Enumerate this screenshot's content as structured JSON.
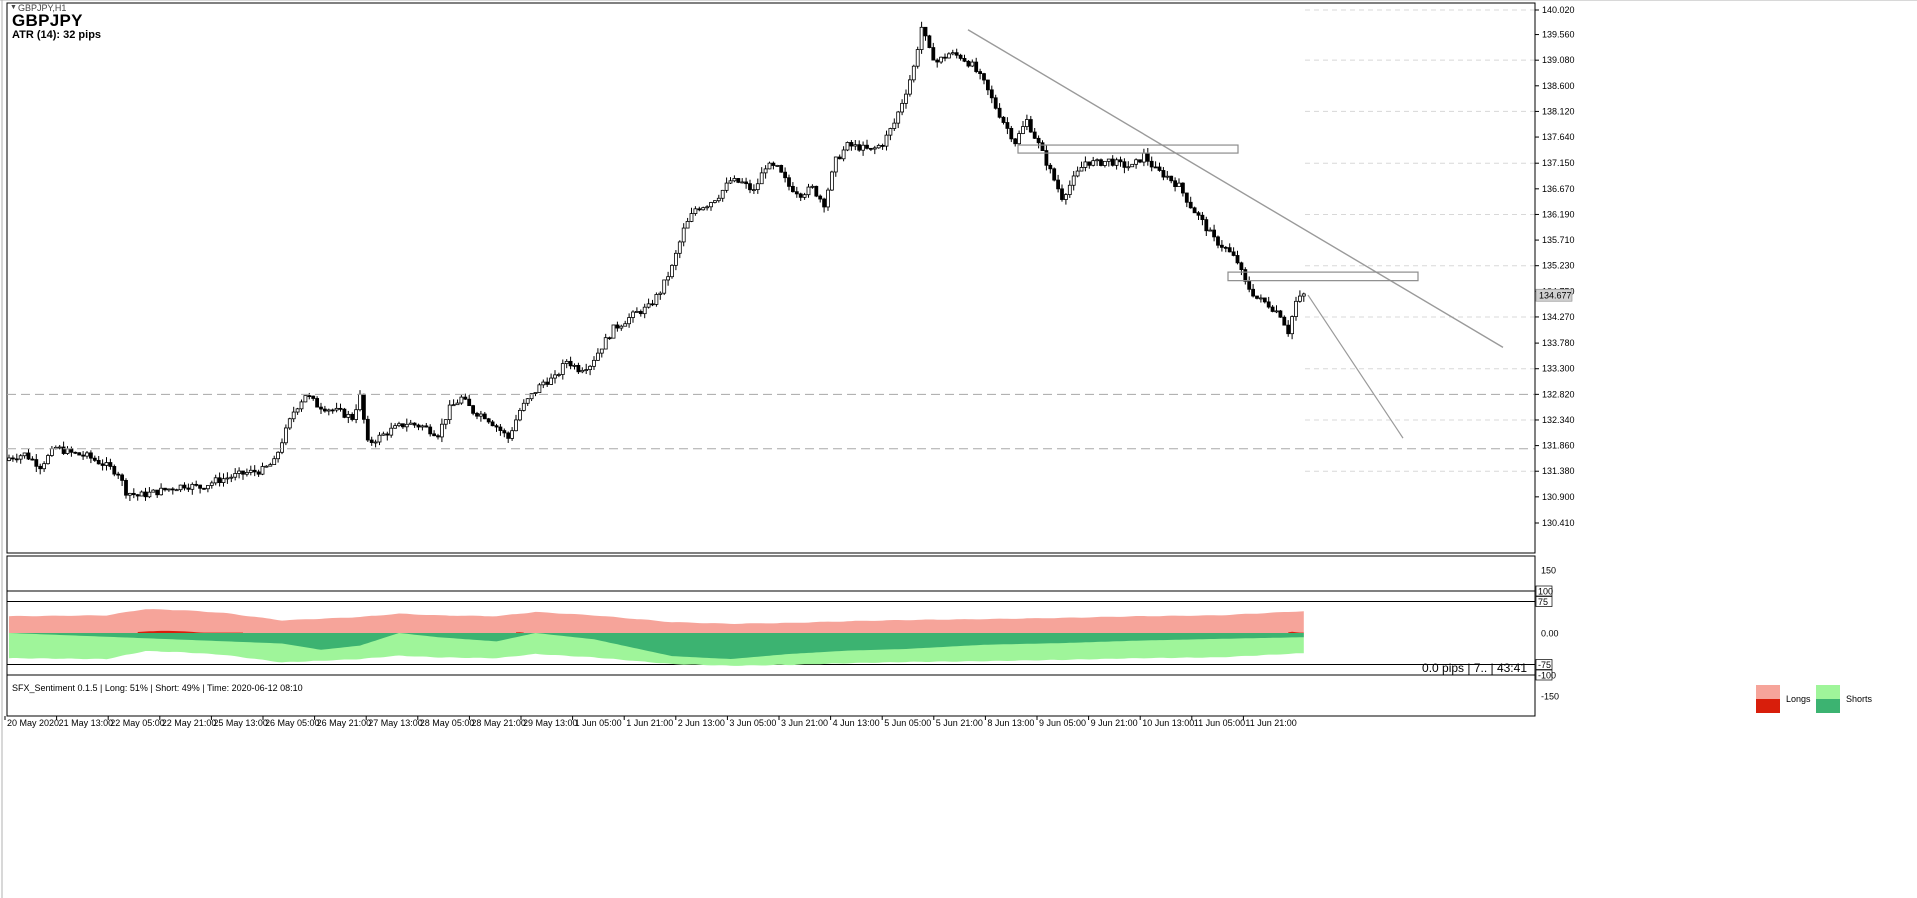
{
  "chart_window": {
    "symbol_timeframe": "GBPJPY,H1",
    "symbol": "GBPJPY",
    "atr_label": "ATR (14): 32 pips",
    "status_info": "0.0 pips | 7.. | 43:41",
    "current_price": "134.677"
  },
  "indicator": {
    "title": "SFX_Sentiment 0.1.5 | Long: 51% | Short: 49% | Time: 2020-06-12 08:10",
    "legend": {
      "longs": "Longs",
      "shorts": "Shorts"
    },
    "levels": [
      "100",
      "75",
      "0.00",
      "-75",
      "-100",
      "150",
      "-150"
    ]
  },
  "colors": {
    "background": "#ffffff",
    "candle": "#000000",
    "trendline": "#9a9a9a",
    "zone_border": "#8c8c8c",
    "longs_light": "#f6a49a",
    "longs_dark": "#d81e0b",
    "shorts_light": "#9ff59a",
    "shorts_dark": "#3cb371"
  },
  "chart_data": [
    {
      "type": "candlestick",
      "title": "GBPJPY,H1",
      "ylim": [
        130.41,
        140.02
      ],
      "y_ticks": [
        "140.020",
        "139.560",
        "139.080",
        "138.600",
        "138.120",
        "137.640",
        "137.150",
        "136.670",
        "136.190",
        "135.710",
        "135.230",
        "134.750",
        "134.270",
        "133.780",
        "133.300",
        "132.820",
        "132.340",
        "131.860",
        "131.380",
        "130.900",
        "130.410"
      ],
      "x_ticks": [
        "20 May 2020",
        "21 May 13:00",
        "22 May 05:00",
        "22 May 21:00",
        "25 May 13:00",
        "26 May 05:00",
        "26 May 21:00",
        "27 May 13:00",
        "28 May 05:00",
        "28 May 21:00",
        "29 May 13:00",
        "1 Jun 05:00",
        "1 Jun 21:00",
        "2 Jun 13:00",
        "3 Jun 05:00",
        "3 Jun 21:00",
        "4 Jun 13:00",
        "5 Jun 05:00",
        "5 Jun 21:00",
        "8 Jun 13:00",
        "9 Jun 05:00",
        "9 Jun 21:00",
        "10 Jun 13:00",
        "11 Jun 05:00",
        "11 Jun 21:00"
      ],
      "close_path": [
        [
          0,
          131.63
        ],
        [
          4,
          131.7
        ],
        [
          8,
          131.48
        ],
        [
          12,
          131.82
        ],
        [
          16,
          131.72
        ],
        [
          20,
          131.66
        ],
        [
          24,
          131.52
        ],
        [
          28,
          131.35
        ],
        [
          30,
          131.0
        ],
        [
          33,
          130.92
        ],
        [
          37,
          130.98
        ],
        [
          41,
          131.05
        ],
        [
          45,
          131.12
        ],
        [
          49,
          131.08
        ],
        [
          53,
          131.2
        ],
        [
          57,
          131.28
        ],
        [
          61,
          131.35
        ],
        [
          65,
          131.4
        ],
        [
          68,
          131.55
        ],
        [
          70,
          131.95
        ],
        [
          73,
          132.5
        ],
        [
          76,
          132.82
        ],
        [
          79,
          132.62
        ],
        [
          82,
          132.55
        ],
        [
          85,
          132.48
        ],
        [
          88,
          132.38
        ],
        [
          90,
          132.78
        ],
        [
          92,
          131.9
        ],
        [
          95,
          132.02
        ],
        [
          98,
          132.15
        ],
        [
          102,
          132.28
        ],
        [
          106,
          132.22
        ],
        [
          110,
          132.08
        ],
        [
          113,
          132.55
        ],
        [
          116,
          132.75
        ],
        [
          119,
          132.5
        ],
        [
          122,
          132.42
        ],
        [
          125,
          132.22
        ],
        [
          128,
          132.0
        ],
        [
          131,
          132.52
        ],
        [
          134,
          132.8
        ],
        [
          137,
          133.05
        ],
        [
          140,
          133.12
        ],
        [
          143,
          133.45
        ],
        [
          146,
          133.3
        ],
        [
          149,
          133.38
        ],
        [
          152,
          133.72
        ],
        [
          155,
          134.05
        ],
        [
          158,
          134.2
        ],
        [
          161,
          134.35
        ],
        [
          164,
          134.45
        ],
        [
          167,
          134.75
        ],
        [
          170,
          135.2
        ],
        [
          173,
          135.9
        ],
        [
          176,
          136.3
        ],
        [
          179,
          136.38
        ],
        [
          182,
          136.55
        ],
        [
          185,
          136.82
        ],
        [
          188,
          136.78
        ],
        [
          191,
          136.62
        ],
        [
          194,
          137.1
        ],
        [
          197,
          137.05
        ],
        [
          200,
          136.72
        ],
        [
          203,
          136.58
        ],
        [
          206,
          136.68
        ],
        [
          209,
          136.4
        ],
        [
          212,
          137.2
        ],
        [
          215,
          137.48
        ],
        [
          218,
          137.45
        ],
        [
          221,
          137.38
        ],
        [
          224,
          137.52
        ],
        [
          227,
          137.9
        ],
        [
          230,
          138.5
        ],
        [
          232,
          138.95
        ],
        [
          234,
          139.7
        ],
        [
          236,
          139.25
        ],
        [
          238,
          139.05
        ],
        [
          241,
          139.2
        ],
        [
          244,
          139.15
        ],
        [
          247,
          138.98
        ],
        [
          250,
          138.65
        ],
        [
          253,
          138.2
        ],
        [
          256,
          137.8
        ],
        [
          258,
          137.55
        ],
        [
          261,
          137.95
        ],
        [
          264,
          137.5
        ],
        [
          267,
          137.0
        ],
        [
          270,
          136.52
        ],
        [
          273,
          136.85
        ],
        [
          276,
          137.18
        ],
        [
          279,
          137.15
        ],
        [
          282,
          137.2
        ],
        [
          285,
          137.12
        ],
        [
          288,
          137.08
        ],
        [
          291,
          137.3
        ],
        [
          294,
          137.02
        ],
        [
          297,
          136.9
        ],
        [
          300,
          136.72
        ],
        [
          303,
          136.35
        ],
        [
          306,
          136.05
        ],
        [
          309,
          135.72
        ],
        [
          312,
          135.55
        ],
        [
          315,
          135.3
        ],
        [
          317,
          134.9
        ],
        [
          320,
          134.62
        ],
        [
          323,
          134.5
        ],
        [
          326,
          134.32
        ],
        [
          328,
          134.0
        ],
        [
          330,
          134.55
        ],
        [
          332,
          134.68
        ]
      ],
      "trendline_from": {
        "date": "5 Jun 15:00",
        "price": 139.65
      },
      "trendline_to": {
        "price": 133.7
      },
      "projection_line_to": {
        "price": 132.0
      },
      "resistance_zones": [
        {
          "from": "8 Jun 09:00",
          "to": "11 Jun 00:00",
          "top": 137.49,
          "bottom": 137.34
        },
        {
          "from": "11 Jun 05:00",
          "to": "12 Jun 16:00",
          "top": 135.11,
          "bottom": 134.95
        }
      ],
      "dashed_levels": [
        132.82,
        131.8
      ]
    },
    {
      "type": "area",
      "title": "SFX_Sentiment 0.1.5",
      "ylim": [
        -150,
        150
      ],
      "levels": [
        100,
        75,
        0,
        -75,
        -100
      ],
      "series": [
        {
          "name": "Longs",
          "values": [
            [
              0,
              40
            ],
            [
              25,
              42
            ],
            [
              35,
              57
            ],
            [
              45,
              54
            ],
            [
              55,
              48
            ],
            [
              70,
              30
            ],
            [
              90,
              38
            ],
            [
              100,
              46
            ],
            [
              110,
              42
            ],
            [
              125,
              40
            ],
            [
              135,
              50
            ],
            [
              150,
              42
            ],
            [
              170,
              26
            ],
            [
              185,
              22
            ],
            [
              200,
              24
            ],
            [
              215,
              28
            ],
            [
              230,
              31
            ],
            [
              250,
              33
            ],
            [
              270,
              36
            ],
            [
              290,
              40
            ],
            [
              310,
              42
            ],
            [
              332,
              52
            ]
          ]
        },
        {
          "name": "Shorts",
          "values": [
            [
              0,
              -60
            ],
            [
              25,
              -62
            ],
            [
              35,
              -43
            ],
            [
              45,
              -46
            ],
            [
              55,
              -52
            ],
            [
              70,
              -70
            ],
            [
              90,
              -62
            ],
            [
              100,
              -54
            ],
            [
              110,
              -58
            ],
            [
              125,
              -60
            ],
            [
              135,
              -50
            ],
            [
              150,
              -58
            ],
            [
              170,
              -74
            ],
            [
              185,
              -78
            ],
            [
              200,
              -76
            ],
            [
              215,
              -72
            ],
            [
              230,
              -69
            ],
            [
              250,
              -67
            ],
            [
              270,
              -64
            ],
            [
              290,
              -60
            ],
            [
              310,
              -58
            ],
            [
              332,
              -48
            ]
          ]
        }
      ],
      "dark_longs_segments": [
        [
          33,
          60,
          5
        ],
        [
          130,
          132,
          3
        ],
        [
          328,
          332,
          3
        ]
      ],
      "dark_shorts_depths": [
        [
          0,
          0
        ],
        [
          70,
          -25
        ],
        [
          80,
          -40
        ],
        [
          90,
          -30
        ],
        [
          100,
          0
        ],
        [
          110,
          -10
        ],
        [
          125,
          -20
        ],
        [
          135,
          0
        ],
        [
          150,
          -15
        ],
        [
          170,
          -55
        ],
        [
          185,
          -62
        ],
        [
          200,
          -50
        ],
        [
          215,
          -42
        ],
        [
          230,
          -38
        ],
        [
          250,
          -28
        ],
        [
          270,
          -24
        ],
        [
          290,
          -18
        ],
        [
          310,
          -14
        ],
        [
          332,
          -10
        ]
      ]
    }
  ]
}
